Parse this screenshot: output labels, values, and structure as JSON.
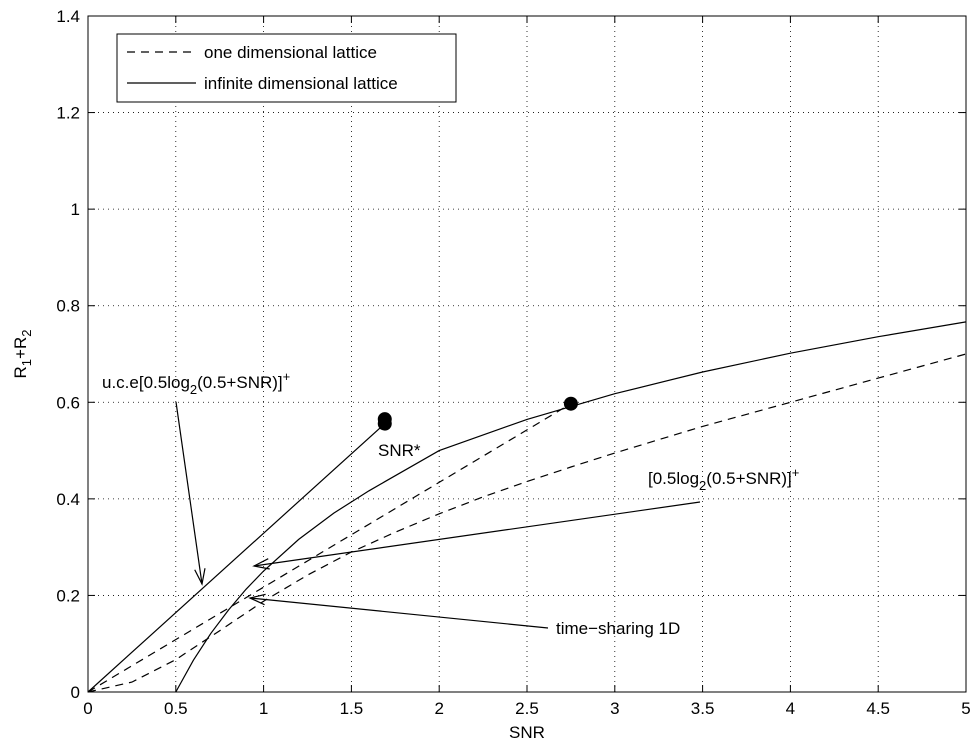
{
  "chart_data": {
    "type": "line",
    "xlabel": "SNR",
    "ylabel": {
      "base": "R",
      "sub1": "1",
      "plus": "+R",
      "sub2": "2"
    },
    "xlim": [
      0,
      5
    ],
    "ylim": [
      0,
      1.4
    ],
    "xticks": [
      "0",
      "0.5",
      "1",
      "1.5",
      "2",
      "2.5",
      "3",
      "3.5",
      "4",
      "4.5",
      "5"
    ],
    "yticks": [
      "0",
      "0.2",
      "0.4",
      "0.6",
      "0.8",
      "1",
      "1.2",
      "1.4"
    ],
    "grid": true,
    "legend": {
      "placement": "top-left",
      "entries": [
        {
          "label": "one dimensional lattice",
          "style": "dashed"
        },
        {
          "label": "infinite dimensional lattice",
          "style": "solid"
        }
      ]
    },
    "series": [
      {
        "name": "infinite dimensional lattice",
        "style": "solid",
        "x": [
          0.5,
          0.6,
          0.7,
          0.8,
          0.9,
          1.0,
          1.2,
          1.4,
          1.6,
          1.69,
          2.0,
          2.5,
          3.0,
          3.5,
          4.0,
          4.5,
          5.0
        ],
        "y": [
          0,
          0.0658,
          0.1215,
          0.1699,
          0.2126,
          0.2506,
          0.316,
          0.3704,
          0.4167,
          0.4356,
          0.5,
          0.5645,
          0.6177,
          0.6627,
          0.7016,
          0.7359,
          0.7664
        ]
      },
      {
        "name": "one dimensional lattice",
        "style": "dashed",
        "x": [
          0,
          0.25,
          0.5,
          0.75,
          1.0,
          1.25,
          1.5,
          1.75,
          2.0,
          2.25,
          2.5,
          2.75,
          3.0,
          3.5,
          4.0,
          4.5,
          5.0
        ],
        "y": [
          0,
          0.0205,
          0.067,
          0.127,
          0.188,
          0.242,
          0.29,
          0.331,
          0.369,
          0.404,
          0.436,
          0.466,
          0.495,
          0.55,
          0.6,
          0.65,
          0.7
        ]
      }
    ],
    "uce_line": {
      "style": "solid",
      "x": [
        0,
        1.69
      ],
      "y": [
        0,
        0.5558
      ]
    },
    "timesharing_line": {
      "style": "dashed",
      "x": [
        0,
        2.75
      ],
      "y": [
        0,
        0.597
      ]
    },
    "points": [
      {
        "x": 1.69,
        "y": 0.5558
      },
      {
        "x": 1.69,
        "y": 0.565
      },
      {
        "x": 2.75,
        "y": 0.597
      }
    ],
    "annotations": [
      {
        "text_main": "u.c.e[0.5log",
        "sub": "2",
        "text_tail": "(0.5+SNR)]",
        "sup": "+"
      },
      {
        "text_main": "SNR*"
      },
      {
        "text_main": "[0.5log",
        "sub": "2",
        "text_tail": "(0.5+SNR)]",
        "sup": "+"
      },
      {
        "text_main": "time−sharing 1D"
      }
    ]
  }
}
